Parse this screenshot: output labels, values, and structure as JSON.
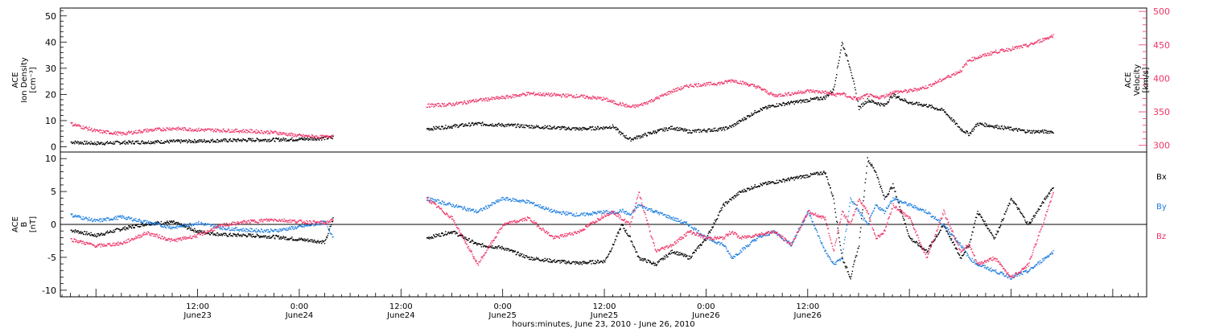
{
  "colors": {
    "black": "#000000",
    "pink": "#ee3366",
    "blue": "#1f7fe0"
  },
  "chart_data": [
    {
      "type": "scatter",
      "panel": "top",
      "ylabel_left": [
        "ACE",
        "Ion Density",
        "[cm⁻³]"
      ],
      "ylabel_right": [
        "ACE",
        "Velocity",
        "[km/s]"
      ],
      "ylim_left": [
        -2,
        53
      ],
      "yticks_left": [
        0,
        10,
        20,
        30,
        40,
        50
      ],
      "ylim_right": [
        290,
        505
      ],
      "yticks_right": [
        300,
        350,
        400,
        450,
        500
      ],
      "series": [
        {
          "axis": "left",
          "color": "#000000",
          "segments": [
            {
              "t": [
                -3,
                0,
                3,
                6,
                9,
                12,
                15,
                18,
                21,
                24,
                27,
                28
              ],
              "y": [
                2,
                1.5,
                1.8,
                2,
                2.2,
                2.4,
                2.6,
                2.8,
                2.9,
                3.1,
                3.5,
                3.8
              ]
            },
            {
              "t": [
                39,
                42,
                45,
                48,
                51,
                54,
                57,
                60,
                61,
                62,
                63,
                64,
                66,
                68,
                70,
                72,
                74,
                75,
                76,
                78,
                80,
                82,
                84,
                86,
                87,
                88,
                89,
                90,
                91,
                92,
                93,
                94,
                96,
                98,
                100,
                102,
                103,
                104,
                106,
                108,
                110,
                113
              ],
              "y": [
                7,
                8,
                9,
                8.5,
                8,
                7.5,
                7,
                7.5,
                8,
                5,
                3,
                4,
                6,
                7.5,
                6,
                6.5,
                7,
                8,
                10,
                14,
                16,
                17,
                18,
                19,
                22,
                40,
                30,
                15,
                18,
                17,
                16,
                20,
                17,
                16,
                14,
                7,
                5,
                9,
                8,
                7,
                6,
                6
              ]
            }
          ]
        },
        {
          "axis": "right",
          "color": "#ee3366",
          "segments": [
            {
              "t": [
                -3,
                0,
                3,
                6,
                9,
                12,
                15,
                18,
                21,
                24,
                27,
                28
              ],
              "y": [
                333,
                322,
                318,
                323,
                326,
                324,
                323,
                322,
                320,
                315,
                313,
                316
              ]
            },
            {
              "t": [
                39,
                42,
                45,
                48,
                51,
                54,
                57,
                60,
                61,
                62,
                63,
                64,
                66,
                68,
                70,
                72,
                74,
                75,
                76,
                78,
                80,
                82,
                84,
                86,
                87,
                88,
                89,
                90,
                91,
                92,
                93,
                94,
                96,
                98,
                100,
                102,
                103,
                104,
                106,
                108,
                110,
                113
              ],
              "y": [
                360,
                362,
                368,
                372,
                378,
                376,
                374,
                370,
                365,
                362,
                358,
                360,
                370,
                382,
                390,
                392,
                394,
                398,
                395,
                388,
                375,
                378,
                382,
                380,
                376,
                378,
                372,
                370,
                376,
                372,
                374,
                380,
                382,
                388,
                400,
                412,
                428,
                432,
                440,
                445,
                450,
                465
              ]
            }
          ]
        }
      ]
    },
    {
      "type": "scatter",
      "panel": "bottom",
      "ylabel_left": [
        "ACE",
        "B",
        "[nT]"
      ],
      "ylim_left": [
        -11,
        11
      ],
      "yticks_left": [
        -10,
        -5,
        0,
        5,
        10
      ],
      "zero_line": true,
      "legend": [
        "Bx",
        "By",
        "Bz"
      ],
      "series": [
        {
          "name": "Bx",
          "color": "#000000",
          "segments": [
            {
              "t": [
                -3,
                0,
                3,
                6,
                9,
                12,
                15,
                18,
                21,
                24,
                27,
                28
              ],
              "y": [
                -0.8,
                -1.6,
                -0.6,
                0.2,
                0.4,
                -1,
                -1.5,
                -1.6,
                -1.8,
                -2.2,
                -2.6,
                1.2
              ]
            },
            {
              "t": [
                39,
                42,
                45,
                48,
                51,
                54,
                57,
                60,
                61,
                62,
                63,
                64,
                66,
                68,
                70,
                72,
                74,
                75,
                76,
                78,
                80,
                82,
                84,
                86,
                87,
                88,
                89,
                90,
                91,
                92,
                93,
                94,
                96,
                98,
                100,
                102,
                103,
                104,
                106,
                108,
                110,
                113
              ],
              "y": [
                -2,
                -1,
                -3,
                -3.5,
                -5,
                -5.5,
                -5.8,
                -5.5,
                -3,
                0,
                -2,
                -5,
                -6,
                -4,
                -5,
                -2,
                3,
                4,
                5,
                6,
                6.5,
                7,
                7.5,
                8,
                4,
                -5,
                -8,
                -3,
                10,
                8,
                4,
                6,
                -2,
                -4,
                0,
                -5,
                -3,
                2,
                -2,
                4,
                0,
                6
              ]
            }
          ]
        },
        {
          "name": "By",
          "color": "#1f7fe0",
          "segments": [
            {
              "t": [
                -3,
                0,
                3,
                6,
                9,
                12,
                15,
                18,
                21,
                24,
                27,
                28
              ],
              "y": [
                1.5,
                0.6,
                1.2,
                0.4,
                -0.4,
                0.3,
                -0.5,
                -0.8,
                -0.9,
                -0.3,
                0.4,
                -2
              ]
            },
            {
              "t": [
                39,
                42,
                45,
                48,
                51,
                54,
                57,
                60,
                61,
                62,
                63,
                64,
                66,
                68,
                70,
                72,
                74,
                75,
                76,
                78,
                80,
                82,
                84,
                86,
                87,
                88,
                89,
                90,
                91,
                92,
                93,
                94,
                96,
                98,
                100,
                102,
                103,
                104,
                106,
                108,
                110,
                113
              ],
              "y": [
                4,
                3,
                2,
                4,
                3.5,
                2,
                1.5,
                2,
                1.8,
                2.2,
                1.5,
                3,
                2,
                1,
                0,
                -2,
                -3,
                -5,
                -4,
                -2,
                -1,
                -3,
                2,
                -4,
                -6,
                -5,
                4,
                2,
                0,
                3,
                2,
                4,
                3,
                2,
                0,
                -3,
                -5,
                -6,
                -7,
                -8,
                -7,
                -4
              ]
            }
          ]
        },
        {
          "name": "Bz",
          "color": "#ee3366",
          "segments": [
            {
              "t": [
                -3,
                0,
                3,
                6,
                9,
                12,
                15,
                18,
                21,
                24,
                27,
                28
              ],
              "y": [
                -2.2,
                -3.2,
                -2.8,
                -1.2,
                -2.4,
                -1.6,
                0,
                0.5,
                0.8,
                0.5,
                0.3,
                0.8
              ]
            },
            {
              "t": [
                39,
                42,
                45,
                48,
                51,
                54,
                57,
                60,
                61,
                62,
                63,
                64,
                66,
                68,
                70,
                72,
                74,
                75,
                76,
                78,
                80,
                82,
                84,
                86,
                87,
                88,
                89,
                90,
                91,
                92,
                93,
                94,
                96,
                98,
                100,
                102,
                103,
                104,
                106,
                108,
                110,
                113
              ],
              "y": [
                4,
                1,
                -6,
                0,
                1,
                -2,
                -1,
                1.5,
                2,
                1,
                0,
                5,
                -4,
                -3,
                -1,
                -2,
                -2,
                -1,
                -2,
                -1.5,
                -1,
                -3,
                2,
                1,
                -4,
                2,
                0,
                4,
                2,
                -2,
                -1,
                3,
                1,
                -5,
                2,
                -4,
                -3,
                -6,
                -5,
                -8,
                -6,
                5
              ]
            }
          ]
        }
      ]
    }
  ],
  "time_axis": {
    "hour0": "June 23, 2010 00:00",
    "xlim": [
      -4.2,
      124
    ],
    "major_ticks": [
      {
        "t": 12,
        "label1": "12:00",
        "label2": "June23"
      },
      {
        "t": 24,
        "label1": "0:00",
        "label2": "June24"
      },
      {
        "t": 36,
        "label1": "12:00",
        "label2": "June24"
      },
      {
        "t": 48,
        "label1": "0:00",
        "label2": "June25"
      },
      {
        "t": 60,
        "label1": "12:00",
        "label2": "June25"
      },
      {
        "t": 72,
        "label1": "0:00",
        "label2": "June26"
      },
      {
        "t": 84,
        "label1": "12:00",
        "label2": "June26"
      }
    ],
    "xlabel": "hours:minutes, June 23, 2010 - June 26, 2010"
  }
}
